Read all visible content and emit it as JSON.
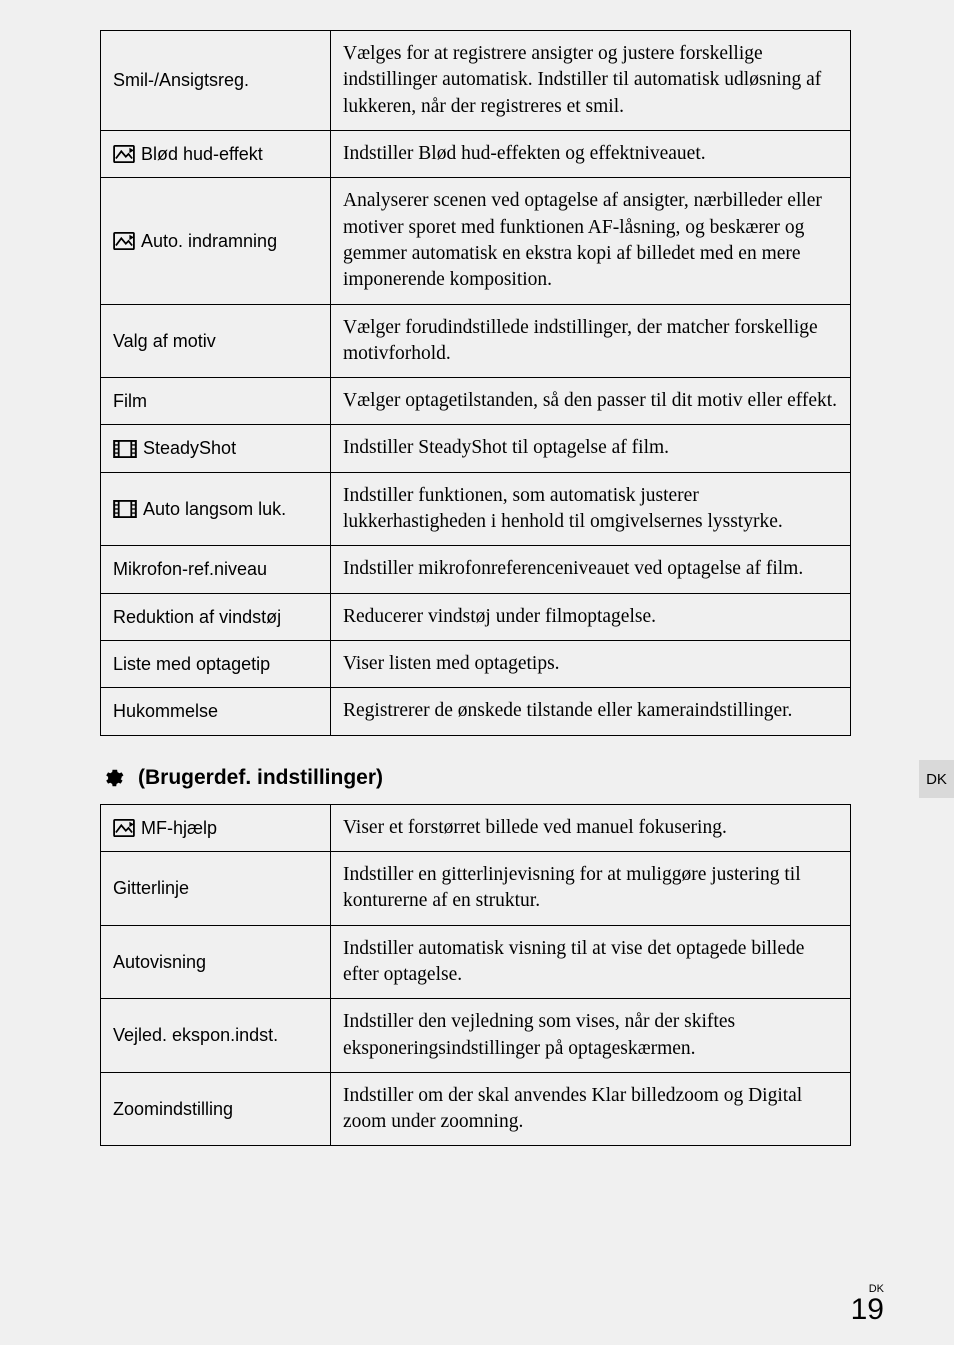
{
  "table1": {
    "rows": [
      {
        "icon": null,
        "label": "Smil-/Ansigtsreg.",
        "desc": "Vælges for at registrere ansigter og justere forskellige indstillinger automatisk. Indstiller til automatisk udløsning af lukkeren, når der registreres et smil."
      },
      {
        "icon": "photo",
        "label": "Blød hud-effekt",
        "desc": "Indstiller Blød hud-effekten og effektniveauet."
      },
      {
        "icon": "photo",
        "label": "Auto. indramning",
        "desc": "Analyserer scenen ved optagelse af ansigter, nærbilleder eller motiver sporet med funktionen AF-låsning, og beskærer og gemmer automatisk en ekstra kopi af billedet med en mere imponerende komposition."
      },
      {
        "icon": null,
        "label": "Valg af motiv",
        "desc": "Vælger forudindstillede indstillinger, der matcher forskellige motivforhold."
      },
      {
        "icon": null,
        "label": "Film",
        "desc": "Vælger optagetilstanden, så den passer til dit motiv eller effekt."
      },
      {
        "icon": "film",
        "label": "SteadyShot",
        "desc": "Indstiller SteadyShot til optagelse af film."
      },
      {
        "icon": "film",
        "label": "Auto langsom luk.",
        "desc": "Indstiller funktionen, som automatisk justerer lukkerhastigheden i henhold til omgivelsernes lysstyrke."
      },
      {
        "icon": null,
        "label": "Mikrofon-ref.niveau",
        "desc": "Indstiller mikrofonreferenceniveauet ved optagelse af film."
      },
      {
        "icon": null,
        "label": "Reduktion af vindstøj",
        "desc": "Reducerer vindstøj under filmoptagelse."
      },
      {
        "icon": null,
        "label": "Liste med optagetip",
        "desc": "Viser listen med optagetips."
      },
      {
        "icon": null,
        "label": "Hukommelse",
        "desc": "Registrerer de ønskede tilstande eller kameraindstillinger."
      }
    ]
  },
  "section2": {
    "heading": "(Brugerdef. indstillinger)",
    "rows": [
      {
        "icon": "photo",
        "label": "MF-hjælp",
        "desc": "Viser et forstørret billede ved manuel fokusering."
      },
      {
        "icon": null,
        "label": "Gitterlinje",
        "desc": "Indstiller en gitterlinjevisning for at muliggøre justering til konturerne af en struktur."
      },
      {
        "icon": null,
        "label": "Autovisning",
        "desc": "Indstiller automatisk visning til at vise det optagede billede efter optagelse."
      },
      {
        "icon": null,
        "label": "Vejled. ekspon.indst.",
        "desc": "Indstiller den vejledning som vises, når der skiftes eksponeringsindstillinger på optageskærmen."
      },
      {
        "icon": null,
        "label": "Zoomindstilling",
        "desc": "Indstiller om der skal anvendes Klar billedzoom og Digital zoom under zoomning."
      }
    ]
  },
  "sideTab": "DK",
  "footer": {
    "small": "DK",
    "page": "19"
  }
}
